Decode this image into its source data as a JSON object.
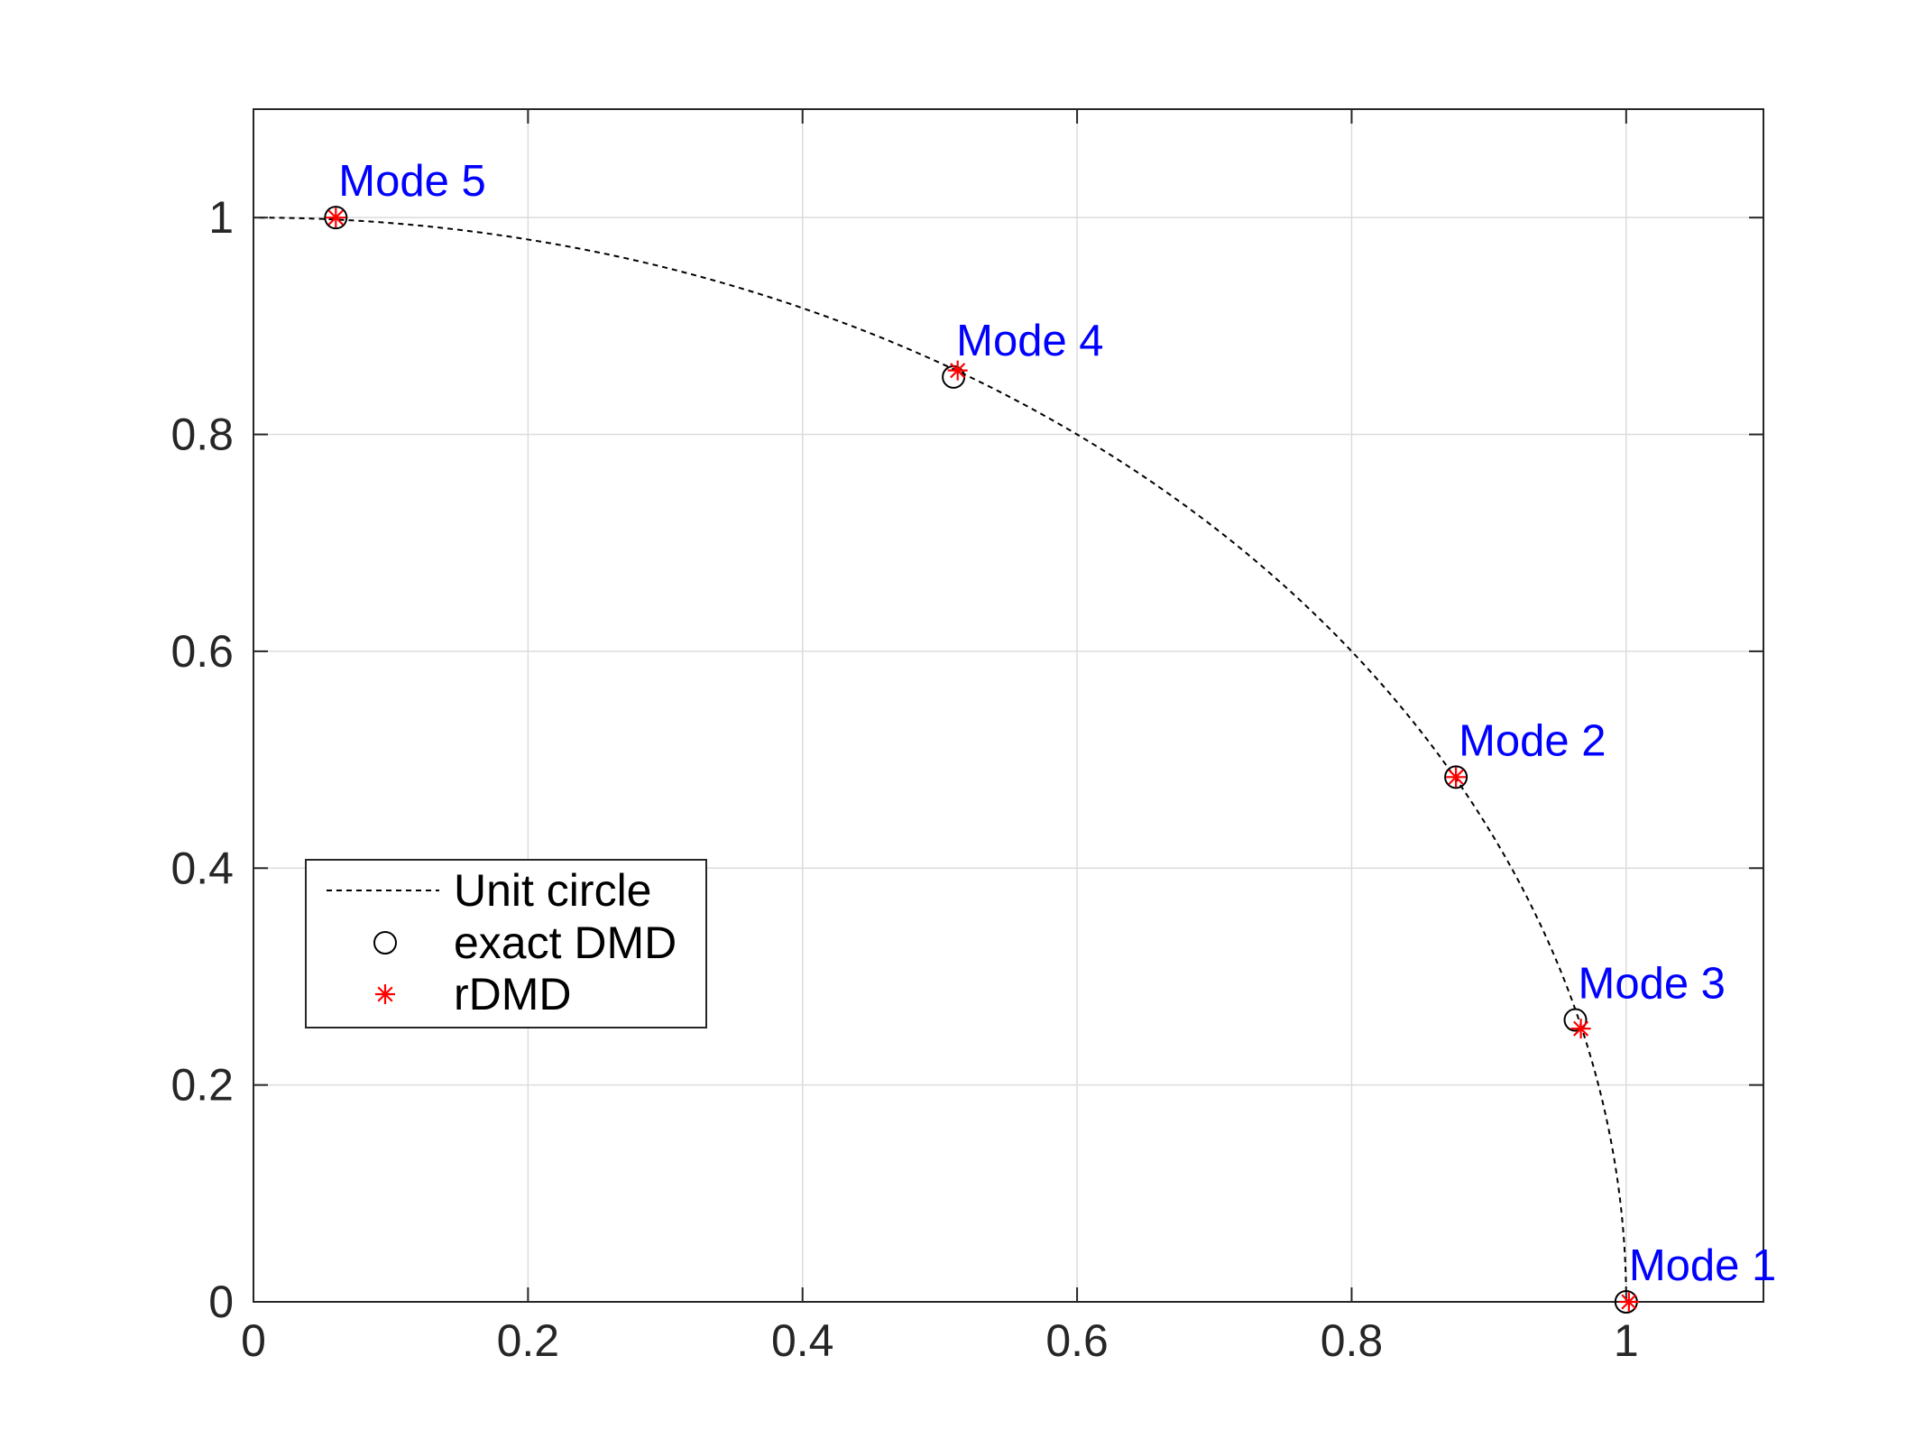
{
  "chart_data": {
    "type": "scatter",
    "title": "",
    "xlabel": "",
    "ylabel": "",
    "xlim": [
      0,
      1.1
    ],
    "ylim": [
      0,
      1.1
    ],
    "xticks": [
      0,
      0.2,
      0.4,
      0.6,
      0.8,
      1
    ],
    "yticks": [
      0,
      0.2,
      0.4,
      0.6,
      0.8,
      1
    ],
    "xtick_labels": [
      "0",
      "0.2",
      "0.4",
      "0.6",
      "0.8",
      "1"
    ],
    "ytick_labels": [
      "0",
      "0.2",
      "0.4",
      "0.6",
      "0.8",
      "1"
    ],
    "grid": true,
    "legend_position": "center-left",
    "series": [
      {
        "name": "Unit circle",
        "kind": "dashed-line",
        "color": "#000000",
        "angle_range_deg": [
          0,
          90
        ]
      },
      {
        "name": "exact DMD",
        "kind": "open-circle",
        "color": "#000000",
        "x": [
          1.0,
          0.876,
          0.963,
          0.51,
          0.06
        ],
        "y": [
          0.0,
          0.484,
          0.26,
          0.853,
          1.0
        ]
      },
      {
        "name": "rDMD",
        "kind": "asterisk",
        "color": "#ff0000",
        "x": [
          1.002,
          0.876,
          0.967,
          0.513,
          0.06
        ],
        "y": [
          0.0,
          0.484,
          0.252,
          0.859,
          1.0
        ]
      }
    ],
    "annotations": [
      {
        "text": "Mode 1",
        "x": 1.0,
        "y": 0.0,
        "color": "#0000ff"
      },
      {
        "text": "Mode 2",
        "x": 0.876,
        "y": 0.484,
        "color": "#0000ff"
      },
      {
        "text": "Mode 3",
        "x": 0.963,
        "y": 0.26,
        "color": "#0000ff"
      },
      {
        "text": "Mode 4",
        "x": 0.51,
        "y": 0.853,
        "color": "#0000ff"
      },
      {
        "text": "Mode 5",
        "x": 0.06,
        "y": 1.0,
        "color": "#0000ff"
      }
    ],
    "colors": {
      "axis": "#262626",
      "grid": "#dcdcdc",
      "annotation": "#0000ff",
      "rdmd": "#ff0000",
      "exact": "#000000"
    }
  }
}
